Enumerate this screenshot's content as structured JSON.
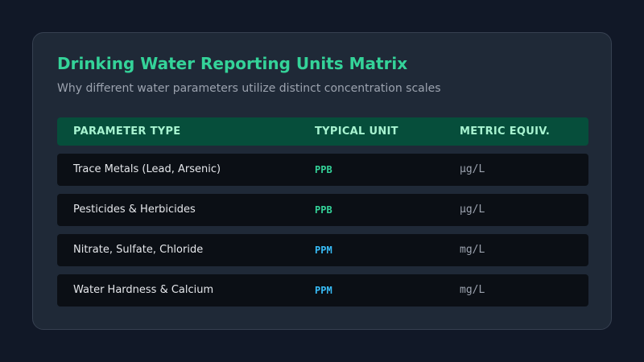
{
  "title": "Drinking Water Reporting Units Matrix",
  "subtitle": "Why different water parameters utilize distinct concentration scales",
  "colors": {
    "background": "#111827",
    "card": "#1f2937",
    "accent_green": "#34d399",
    "accent_blue": "#38bdf8",
    "header_bg": "#064e3b"
  },
  "table": {
    "headers": [
      "PARAMETER TYPE",
      "TYPICAL UNIT",
      "METRIC EQUIV."
    ],
    "rows": [
      {
        "parameter": "Trace Metals (Lead, Arsenic)",
        "unit": "PPB",
        "metric": "µg/L"
      },
      {
        "parameter": "Pesticides & Herbicides",
        "unit": "PPB",
        "metric": "µg/L"
      },
      {
        "parameter": "Nitrate, Sulfate, Chloride",
        "unit": "PPM",
        "metric": "mg/L"
      },
      {
        "parameter": "Water Hardness & Calcium",
        "unit": "PPM",
        "metric": "mg/L"
      }
    ]
  }
}
